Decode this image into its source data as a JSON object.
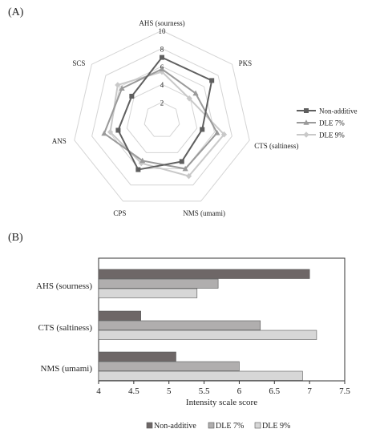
{
  "panel_a_label": "(A)",
  "panel_b_label": "(B)",
  "chart_data": [
    {
      "type": "radar",
      "axes": [
        "AHS (sourness)",
        "PKS",
        "CTS (saltiness)",
        "NMS (umami)",
        "CPS",
        "ANS",
        "SCS"
      ],
      "ticks": [
        2,
        4,
        6,
        8,
        10
      ],
      "tick_labels": [
        "2",
        "4",
        "6",
        "8",
        "10"
      ],
      "range": [
        0,
        10
      ],
      "grid": true,
      "legend_position": "right",
      "series": [
        {
          "name": "Non-additive",
          "values": [
            7.0,
            7.1,
            4.6,
            5.1,
            6.1,
            5.0,
            4.3
          ],
          "color": "#5f5f5f",
          "marker": "square"
        },
        {
          "name": "DLE 7%",
          "values": [
            5.7,
            4.8,
            6.3,
            6.0,
            5.0,
            6.6,
            5.7
          ],
          "color": "#9a9a9a",
          "marker": "triangle"
        },
        {
          "name": "DLE 9%",
          "values": [
            5.4,
            3.9,
            7.1,
            6.9,
            5.3,
            5.9,
            6.3
          ],
          "color": "#c9c9c9",
          "marker": "diamond"
        }
      ]
    },
    {
      "type": "bar",
      "orientation": "horizontal",
      "categories": [
        "AHS (sourness)",
        "CTS (saltiness)",
        "NMS (umami)"
      ],
      "xlabel": "Intensity scale score",
      "xlim": [
        4,
        7.5
      ],
      "xticks": [
        4,
        4.5,
        5,
        5.5,
        6,
        6.5,
        7,
        7.5
      ],
      "xtick_labels": [
        "4",
        "4.5",
        "5",
        "5.5",
        "6",
        "6.5",
        "7",
        "7.5"
      ],
      "grid": false,
      "legend_position": "bottom",
      "series": [
        {
          "name": "Non-additive",
          "values": [
            7.0,
            4.6,
            5.1
          ],
          "color": "#6e6767"
        },
        {
          "name": "DLE 7%",
          "values": [
            5.7,
            6.3,
            6.0
          ],
          "color": "#b0aeae"
        },
        {
          "name": "DLE 9%",
          "values": [
            5.4,
            7.1,
            6.9
          ],
          "color": "#d7d7d7"
        }
      ]
    }
  ]
}
